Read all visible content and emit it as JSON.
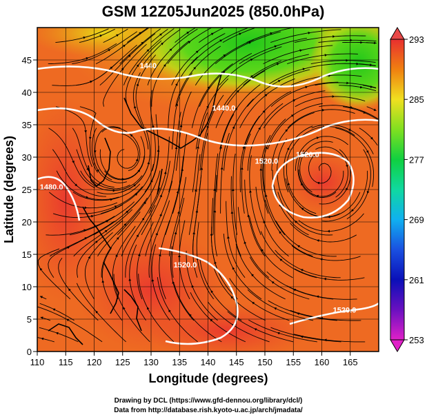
{
  "title": "GSM 12Z05Jun2025 (850.0hPa)",
  "x_axis": {
    "label": "Longitude (degrees)",
    "range": [
      110,
      170
    ],
    "ticks": [
      "110",
      "115",
      "120",
      "125",
      "130",
      "135",
      "140",
      "145",
      "150",
      "155",
      "160",
      "165"
    ]
  },
  "y_axis": {
    "label": "Latitude  (degrees)",
    "range": [
      0,
      50
    ],
    "ticks": [
      "0",
      "5",
      "10",
      "15",
      "20",
      "25",
      "30",
      "35",
      "40",
      "45"
    ]
  },
  "colorbar": {
    "min": 253,
    "max": 293,
    "ticks": [
      "253",
      "261",
      "269",
      "277",
      "285",
      "293"
    ]
  },
  "contour_labels": [
    {
      "text": "1440",
      "lon": 129.5,
      "lat": 43.7
    },
    {
      "text": "1440.0",
      "lon": 142.8,
      "lat": 37.2
    },
    {
      "text": "1520.0",
      "lon": 157.5,
      "lat": 30.0
    },
    {
      "text": "1520.0",
      "lon": 150.3,
      "lat": 29.0
    },
    {
      "text": "1480.0",
      "lon": 112.5,
      "lat": 25.0
    },
    {
      "text": "1520.0",
      "lon": 136.0,
      "lat": 13.0
    },
    {
      "text": "1520.0",
      "lon": 164.0,
      "lat": 6.0
    }
  ],
  "credits": [
    "Drawing by DCL (https://www.gfd-dennou.org/library/dcl/)",
    "Data from http://database.rish.kyoto-u.ac.jp/arch/jmadata/"
  ]
}
